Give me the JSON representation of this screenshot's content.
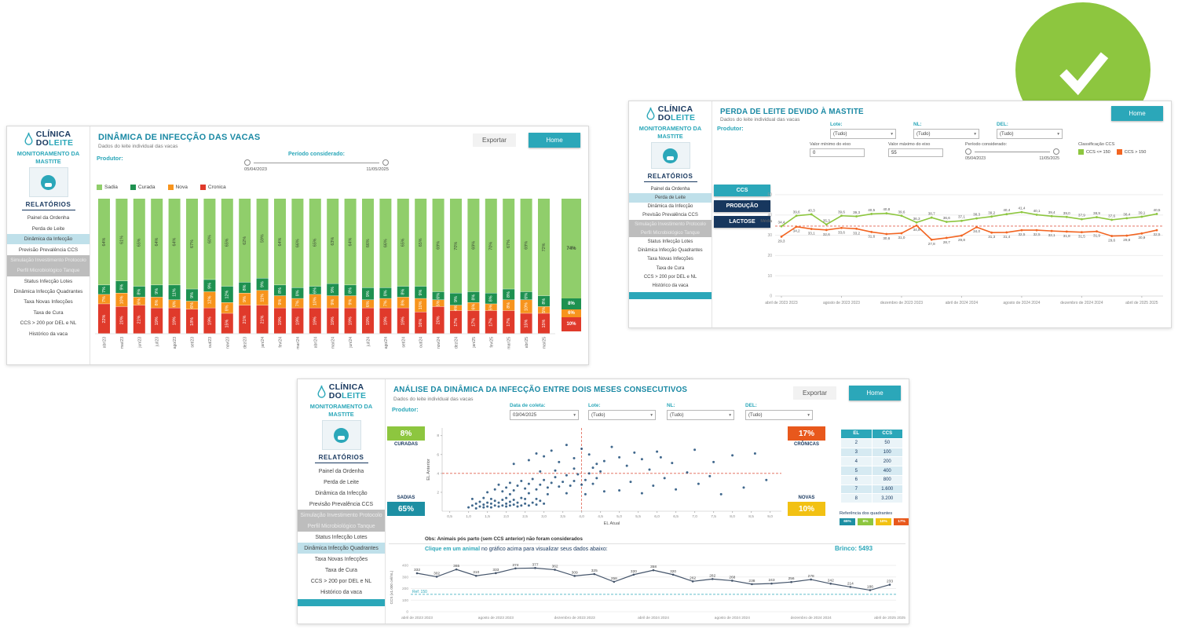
{
  "page": {
    "bg": "#ffffff",
    "accent_teal": "#2BA7B9",
    "navy": "#17375E"
  },
  "checkmark": {
    "color": "#8DC63F"
  },
  "common": {
    "logo": {
      "line1": "CLÍNICA",
      "line2_a": "DO",
      "line2_b": "LEITE"
    },
    "monitor_title": "MONITORAMENTO DA MASTITE",
    "reports_title": "RELATÓRIOS",
    "menu": [
      "Painel da Ordenha",
      "Perda de Leite",
      "Dinâmica da Infecção",
      "Previsão Prevalência CCS",
      "Simulação Investimento Protocolo",
      "Perfil Microbiológico Tanque",
      "Status Infecção Lotes",
      "Dinâmica Infecção Quadrantes",
      "Taxa Novas Infecções",
      "Taxa de Cura",
      "CCS > 200 por DEL e NL",
      "Histórico da vaca"
    ],
    "disabled_indices": [
      4,
      5
    ]
  },
  "panel1": {
    "active_menu": 2,
    "clipped_bar": false,
    "title": "DINÂMICA DE INFECÇÃO DAS VACAS",
    "subtitle": "Dados do leite individual das vacas",
    "export_label": "Exportar",
    "home_label": "Home",
    "producer_label": "Produtor:",
    "period_label": "Período considerado:",
    "period_start": "05/04/2023",
    "period_end": "11/05/2025",
    "legend": [
      {
        "label": "Sadia",
        "color": "#90CE6B"
      },
      {
        "label": "Curada",
        "color": "#1E9150"
      },
      {
        "label": "Nova",
        "color": "#F7941D"
      },
      {
        "label": "Cronica",
        "color": "#E03A2B"
      }
    ],
    "chart": {
      "type": "bar",
      "months": [
        "abr/23",
        "mai/23",
        "jun/23",
        "jul/23",
        "ago/23",
        "set/23",
        "out/23",
        "nov/23",
        "dez/23",
        "jan/24",
        "fev/24",
        "mar/24",
        "abr/24",
        "mai/24",
        "jun/24",
        "jul/24",
        "ago/24",
        "set/24",
        "out/24",
        "nov/24",
        "dez/24",
        "jan/25",
        "fev/25",
        "mar/25",
        "abr/25",
        "mai/25"
      ],
      "sadia": [
        64,
        61,
        65,
        64,
        64,
        67,
        60,
        65,
        62,
        59,
        64,
        66,
        65,
        63,
        64,
        66,
        66,
        65,
        65,
        69,
        70,
        69,
        70,
        67,
        69,
        72
      ],
      "curada": [
        7,
        9,
        8,
        9,
        11,
        9,
        9,
        12,
        8,
        9,
        8,
        8,
        6,
        9,
        8,
        9,
        8,
        8,
        9,
        6,
        9,
        8,
        8,
        8,
        6,
        8
      ],
      "nova": [
        7,
        10,
        6,
        8,
        6,
        6,
        12,
        8,
        9,
        11,
        9,
        7,
        10,
        9,
        9,
        6,
        7,
        8,
        10,
        5,
        4,
        6,
        5,
        8,
        10,
        5
      ],
      "cronica": [
        22,
        20,
        21,
        19,
        19,
        18,
        19,
        15,
        21,
        21,
        19,
        19,
        19,
        19,
        19,
        19,
        19,
        19,
        16,
        20,
        17,
        17,
        17,
        17,
        15,
        15
      ],
      "colors": {
        "sadia": "#90CE6B",
        "curada": "#1E9150",
        "nova": "#F7941D",
        "cronica": "#E03A2B"
      },
      "summary": {
        "sadia": 74,
        "curada": 8,
        "nova": 6,
        "cronica": 10
      }
    }
  },
  "panel2": {
    "active_menu": 1,
    "clipped_bar": true,
    "title": "PERDA DE LEITE DEVIDO À MASTITE",
    "subtitle": "Dados do leite individual das vacas",
    "home_label": "Home",
    "producer_label": "Produtor:",
    "filters": [
      {
        "label": "Lote:",
        "value": "(Tudo)"
      },
      {
        "label": "NL:",
        "value": "(Tudo)"
      },
      {
        "label": "DEL:",
        "value": "(Tudo)"
      }
    ],
    "axis_min_label": "Valor mínimo do eixo",
    "axis_min_value": "0",
    "axis_max_label": "Valor máximo do eixo",
    "axis_max_value": "55",
    "period_label": "Período considerado:",
    "period_start": "05/04/2023",
    "period_end": "11/05/2025",
    "class_label": "Classificação CCS",
    "legend": [
      {
        "label": "CCS <= 150",
        "color": "#8DC63F"
      },
      {
        "label": "CCS > 150",
        "color": "#F26522"
      }
    ],
    "buttons": [
      {
        "label": "CCS",
        "color": "#2BA7B9"
      },
      {
        "label": "PRODUÇÃO",
        "color": "#17375E"
      },
      {
        "label": "LACTOSE",
        "color": "#17375E"
      }
    ],
    "media_label": "Média",
    "chart": {
      "type": "line",
      "ylim": [
        0,
        55
      ],
      "y_ticks": [
        0,
        10,
        20,
        30,
        40,
        50
      ],
      "media_value": 34.5,
      "x_labels": [
        "abril de 2023 2023",
        "agosto de 2023 2023",
        "dezembro de 2023 2023",
        "abril de 2024 2024",
        "agosto de 2024 2024",
        "dezembro de 2024 2024",
        "abril de 2025 2025"
      ],
      "series": [
        {
          "name": "CCS <= 150",
          "color": "#8DC63F",
          "values": [
            34.4,
            39.6,
            40.3,
            35.3,
            39.6,
            39.3,
            40.5,
            40.8,
            39.6,
            36.3,
            38.7,
            36.6,
            37.1,
            38.3,
            39.2,
            40.4,
            41.4,
            40.1,
            39.4,
            39.0,
            37.9,
            38.9,
            37.6,
            38.4,
            39.1,
            40.5
          ]
        },
        {
          "name": "CCS > 150",
          "color": "#F26522",
          "values": [
            29.3,
            34.2,
            33.1,
            32.6,
            33.6,
            33.2,
            31.6,
            30.6,
            31.0,
            34.8,
            27.8,
            28.7,
            29.8,
            34.0,
            31.3,
            31.4,
            32.5,
            32.5,
            32.1,
            31.8,
            31.5,
            31.9,
            29.6,
            29.8,
            30.9,
            32.5
          ]
        }
      ]
    }
  },
  "panel3": {
    "active_menu": 7,
    "clipped_bar": true,
    "title": "ANÁLISE DA DINÂMICA DA INFECÇÃO ENTRE DOIS MESES CONSECUTIVOS",
    "subtitle": "Dados do leite individual das vacas",
    "export_label": "Exportar",
    "home_label": "Home",
    "producer_label": "Produtor:",
    "date_label": "Data de coleta:",
    "date_value": "03/04/2025",
    "filters": [
      {
        "label": "Lote:",
        "value": "(Tudo)"
      },
      {
        "label": "NL:",
        "value": "(Tudo)"
      },
      {
        "label": "DEL:",
        "value": "(Tudo)"
      }
    ],
    "badges": {
      "curadas": {
        "pct": "8%",
        "label": "CURADAS",
        "color": "#8DC63F"
      },
      "cronicas": {
        "pct": "17%",
        "label": "CRÔNICAS",
        "color": "#E8581C"
      },
      "sadias": {
        "pct": "65%",
        "label": "SADIAS",
        "color": "#1D8FA3"
      },
      "novas": {
        "pct": "10%",
        "label": "NOVAS",
        "color": "#F2C113"
      }
    },
    "scatter": {
      "type": "scatter",
      "xlabel": "EL Atual",
      "ylabel": "EL Anterior",
      "xlim": [
        0.3,
        9.3
      ],
      "ylim": [
        0,
        8.8
      ],
      "x_ticks": [
        0.5,
        1.0,
        1.5,
        2.0,
        2.5,
        3.0,
        3.5,
        4.0,
        4.5,
        5.0,
        5.5,
        6.0,
        6.5,
        7.0,
        7.5,
        8.0,
        8.5,
        9.0
      ],
      "y_ticks": [
        2,
        4,
        6,
        8
      ],
      "threshold_x": 4.0,
      "threshold_y": 4.0,
      "point_color": "#1F4E79",
      "points": [
        [
          1.0,
          0.4
        ],
        [
          1.1,
          0.6
        ],
        [
          1.2,
          0.3
        ],
        [
          1.2,
          0.8
        ],
        [
          1.3,
          0.5
        ],
        [
          1.3,
          1.0
        ],
        [
          1.4,
          0.4
        ],
        [
          1.4,
          0.7
        ],
        [
          1.5,
          0.5
        ],
        [
          1.5,
          0.9
        ],
        [
          1.6,
          0.4
        ],
        [
          1.6,
          0.8
        ],
        [
          1.7,
          0.6
        ],
        [
          1.7,
          1.1
        ],
        [
          1.8,
          0.5
        ],
        [
          1.8,
          0.9
        ],
        [
          1.9,
          0.6
        ],
        [
          1.9,
          1.2
        ],
        [
          2.0,
          0.5
        ],
        [
          2.0,
          0.8
        ],
        [
          2.1,
          0.6
        ],
        [
          2.1,
          1.0
        ],
        [
          2.2,
          0.7
        ],
        [
          2.2,
          1.2
        ],
        [
          2.3,
          0.5
        ],
        [
          2.3,
          0.9
        ],
        [
          2.4,
          0.6
        ],
        [
          2.5,
          0.8
        ],
        [
          2.5,
          1.3
        ],
        [
          2.6,
          0.6
        ],
        [
          2.7,
          0.9
        ],
        [
          2.8,
          0.7
        ],
        [
          2.9,
          1.1
        ],
        [
          3.0,
          0.8
        ],
        [
          1.1,
          1.3
        ],
        [
          1.4,
          1.4
        ],
        [
          1.6,
          1.3
        ],
        [
          2.0,
          1.4
        ],
        [
          2.4,
          1.4
        ],
        [
          2.8,
          1.3
        ],
        [
          1.5,
          2.0
        ],
        [
          1.7,
          2.3
        ],
        [
          1.8,
          2.8
        ],
        [
          1.9,
          2.1
        ],
        [
          2.0,
          2.5
        ],
        [
          2.1,
          3.0
        ],
        [
          2.2,
          2.2
        ],
        [
          2.3,
          2.7
        ],
        [
          2.4,
          3.2
        ],
        [
          2.5,
          2.4
        ],
        [
          2.6,
          2.9
        ],
        [
          2.7,
          3.4
        ],
        [
          2.8,
          2.3
        ],
        [
          2.9,
          2.8
        ],
        [
          3.0,
          3.3
        ],
        [
          3.1,
          2.5
        ],
        [
          3.2,
          3.0
        ],
        [
          3.3,
          3.6
        ],
        [
          3.4,
          2.6
        ],
        [
          3.5,
          3.1
        ],
        [
          3.6,
          3.8
        ],
        [
          3.7,
          2.7
        ],
        [
          3.8,
          3.2
        ],
        [
          3.9,
          3.9
        ],
        [
          4.0,
          2.8
        ],
        [
          4.1,
          3.3
        ],
        [
          4.2,
          4.0
        ],
        [
          4.3,
          2.9
        ],
        [
          4.4,
          3.5
        ],
        [
          4.5,
          4.2
        ],
        [
          2.1,
          1.8
        ],
        [
          2.6,
          1.9
        ],
        [
          3.1,
          1.8
        ],
        [
          3.6,
          1.9
        ],
        [
          4.1,
          1.8
        ],
        [
          4.6,
          2.1
        ],
        [
          3.3,
          4.3
        ],
        [
          3.8,
          4.5
        ],
        [
          4.3,
          4.6
        ],
        [
          2.9,
          4.2
        ],
        [
          2.2,
          5.0
        ],
        [
          2.6,
          5.4
        ],
        [
          3.0,
          5.8
        ],
        [
          3.4,
          5.2
        ],
        [
          3.8,
          5.6
        ],
        [
          4.2,
          6.0
        ],
        [
          4.6,
          5.3
        ],
        [
          5.0,
          5.7
        ],
        [
          5.4,
          6.2
        ],
        [
          3.2,
          6.4
        ],
        [
          4.0,
          6.6
        ],
        [
          4.8,
          6.8
        ],
        [
          2.8,
          6.1
        ],
        [
          3.6,
          7.0
        ],
        [
          4.4,
          5.0
        ],
        [
          5.2,
          4.8
        ],
        [
          5.6,
          5.5
        ],
        [
          6.0,
          6.3
        ],
        [
          6.4,
          5.1
        ],
        [
          5.8,
          4.4
        ],
        [
          5.0,
          2.2
        ],
        [
          5.3,
          3.1
        ],
        [
          5.6,
          1.9
        ],
        [
          5.9,
          2.7
        ],
        [
          6.2,
          3.5
        ],
        [
          6.5,
          2.3
        ],
        [
          6.8,
          4.1
        ],
        [
          7.1,
          2.9
        ],
        [
          7.4,
          3.7
        ],
        [
          7.7,
          1.8
        ],
        [
          8.0,
          5.9
        ],
        [
          8.3,
          2.5
        ],
        [
          8.6,
          6.1
        ],
        [
          8.9,
          3.3
        ],
        [
          6.1,
          5.7
        ],
        [
          7.0,
          6.5
        ],
        [
          7.5,
          5.2
        ]
      ]
    },
    "table": {
      "headers": [
        "EL",
        "CCS"
      ],
      "rows": [
        [
          "2",
          "50"
        ],
        [
          "3",
          "100"
        ],
        [
          "4",
          "200"
        ],
        [
          "5",
          "400"
        ],
        [
          "6",
          "800"
        ],
        [
          "7",
          "1.600"
        ],
        [
          "8",
          "3.200"
        ]
      ]
    },
    "quadrant_ref_label": "Referência dos quadrantes",
    "quadrant_badges": [
      {
        "label": "65%",
        "color": "#1D8FA3"
      },
      {
        "label": "8%",
        "color": "#8DC63F"
      },
      {
        "label": "10%",
        "color": "#F2C113"
      },
      {
        "label": "17%",
        "color": "#E8581C"
      }
    ],
    "obs": "Obs: Animais pós parto (sem CCS anterior) não foram considerados",
    "click_bold": "Clique em um animal",
    "click_rest": " no gráfico acima para visualizar seus dados abaixo:",
    "brinco_label": "Brinco: 5493",
    "ccs_chart": {
      "type": "line",
      "ylabel": "CCS (x1.000 cel/mL)",
      "y_ticks": [
        0,
        100,
        200,
        300,
        400
      ],
      "ref_label": "Ref: 150",
      "ref_value": 150,
      "color": "#44546A",
      "x_labels": [
        "abril de 2023 2023",
        "agosto de 2023 2023",
        "dezembro de 2023 2023",
        "abril de 2024 2024",
        "agosto de 2024 2024",
        "dezembro de 2024 2024",
        "abril de 2025 2025"
      ],
      "values": [
        332,
        302,
        365,
        310,
        333,
        374,
        377,
        362,
        309,
        325,
        258,
        320,
        358,
        320,
        262,
        282,
        268,
        238,
        243,
        256,
        278,
        242,
        214,
        186,
        233
      ]
    }
  }
}
